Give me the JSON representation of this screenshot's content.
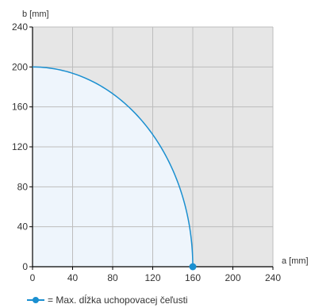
{
  "chart_data": {
    "type": "line",
    "xlabel": "a [mm]",
    "ylabel": "b [mm]",
    "xlim": [
      0,
      240
    ],
    "ylim": [
      0,
      240
    ],
    "x_ticks": [
      0,
      40,
      80,
      120,
      160,
      200,
      240
    ],
    "y_ticks": [
      0,
      40,
      80,
      120,
      160,
      200,
      240
    ],
    "grid": true,
    "series": [
      {
        "name": "= Max. dĺžka uchopovacej čeľusti",
        "shape": "quarter-ellipse",
        "a_max": 160,
        "b_max": 200,
        "marker_point": [
          160,
          0
        ]
      }
    ],
    "legend_placement": "bottom-left"
  },
  "colors": {
    "line": "#1a8fd0",
    "fill_inside": "#eef5fc",
    "fill_outside": "#e6e6e6",
    "grid": "#bdbdbd",
    "axis": "#000000"
  }
}
